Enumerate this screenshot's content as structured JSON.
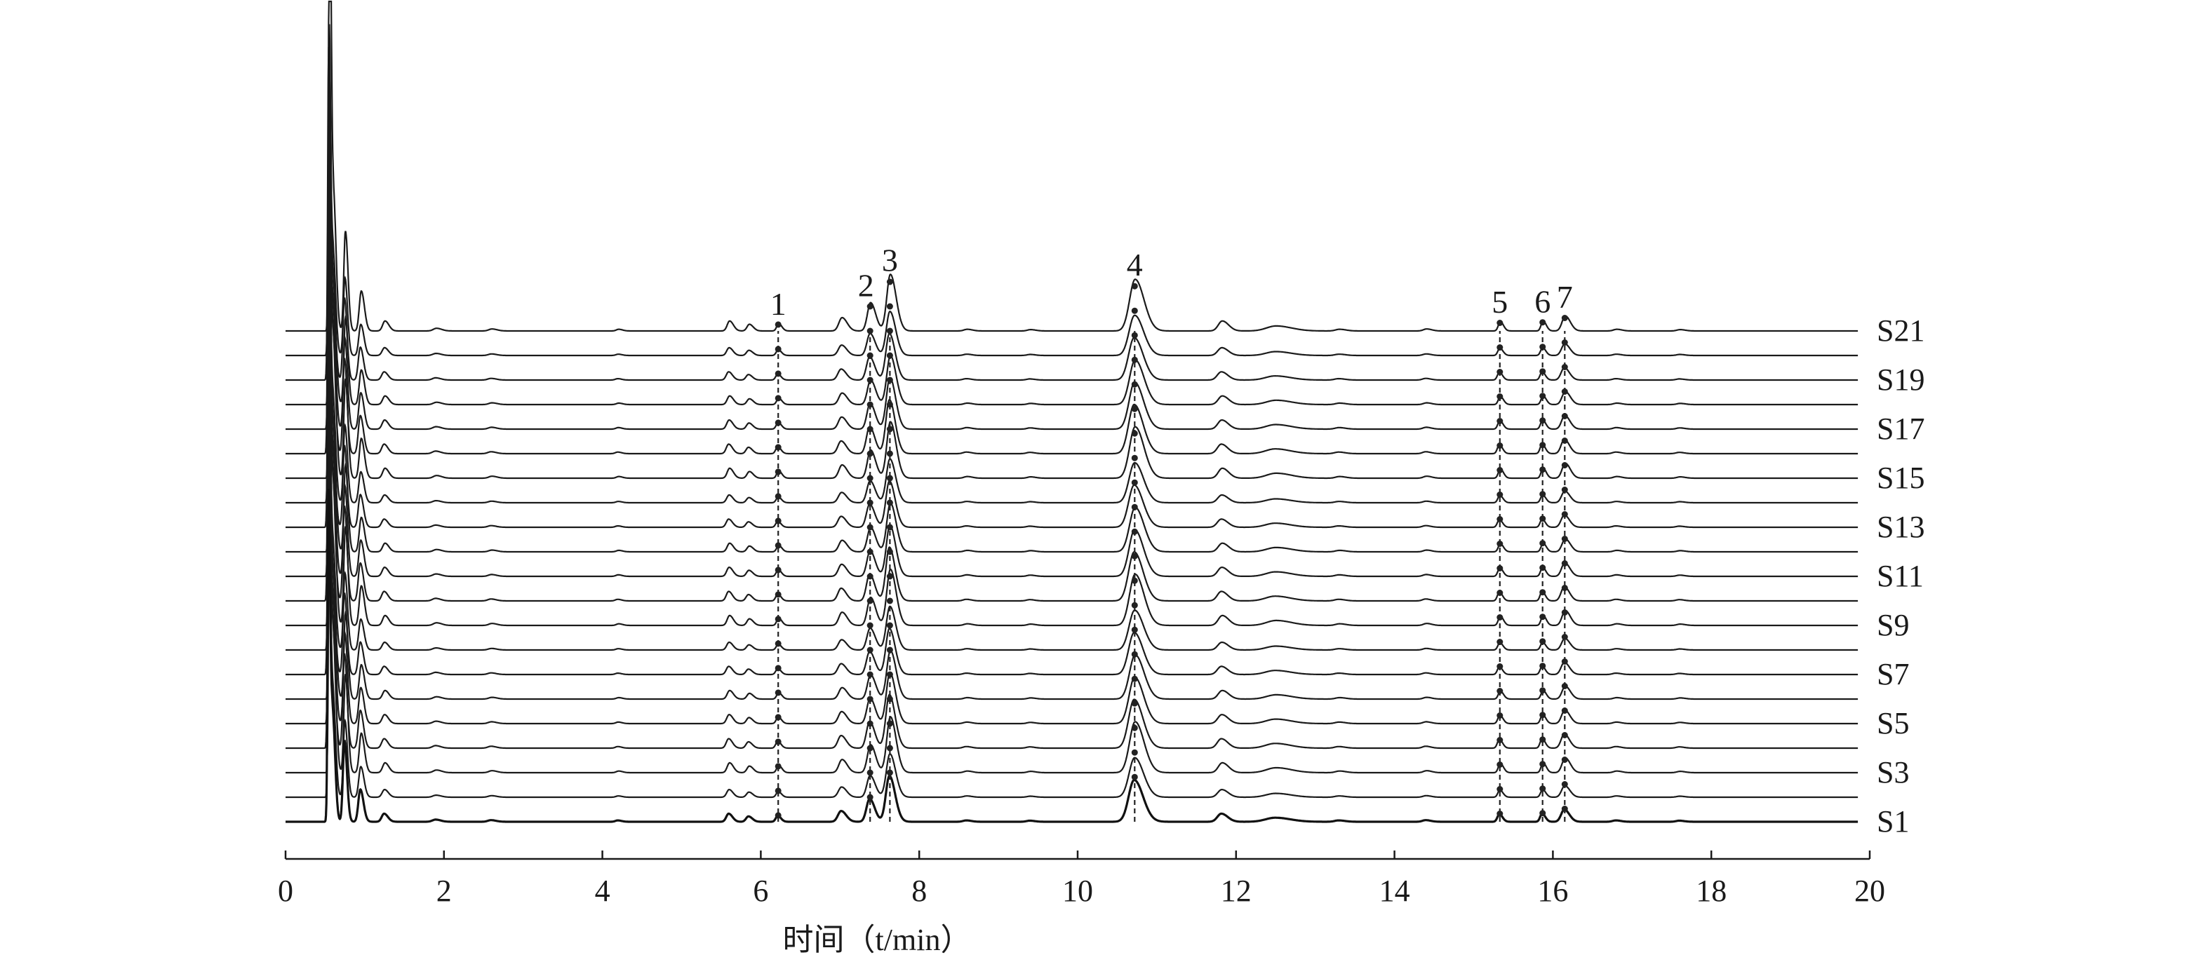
{
  "chart_data": {
    "type": "line",
    "title": "",
    "xlabel": "时间（t/min）",
    "ylabel": "",
    "xlim": [
      0,
      20
    ],
    "xticks": [
      0,
      2,
      4,
      6,
      8,
      10,
      12,
      14,
      16,
      18,
      20
    ],
    "grid": false,
    "legend": "none",
    "colors": {
      "trace": "#1a1a1a",
      "axis": "#1a1a1a",
      "marker": "#222222"
    },
    "series": [
      {
        "label": "S1"
      },
      {
        "label": ""
      },
      {
        "label": "S3"
      },
      {
        "label": ""
      },
      {
        "label": "S5"
      },
      {
        "label": ""
      },
      {
        "label": "S7"
      },
      {
        "label": ""
      },
      {
        "label": "S9"
      },
      {
        "label": ""
      },
      {
        "label": "S11"
      },
      {
        "label": ""
      },
      {
        "label": "S13"
      },
      {
        "label": ""
      },
      {
        "label": "S15"
      },
      {
        "label": ""
      },
      {
        "label": "S17"
      },
      {
        "label": ""
      },
      {
        "label": "S19"
      },
      {
        "label": ""
      },
      {
        "label": "S21"
      }
    ],
    "peaks": [
      {
        "label": "1",
        "rt": 6.22,
        "height": 0.22,
        "width": 0.025
      },
      {
        "label": "2",
        "rt": 7.38,
        "height": 0.85,
        "width": 0.04
      },
      {
        "label": "3",
        "rt": 7.63,
        "height": 1.7,
        "width": 0.045
      },
      {
        "label": "4",
        "rt": 10.72,
        "height": 1.55,
        "width": 0.07
      },
      {
        "label": "5",
        "rt": 15.33,
        "height": 0.28,
        "width": 0.025
      },
      {
        "label": "6",
        "rt": 15.87,
        "height": 0.3,
        "width": 0.025
      },
      {
        "label": "7",
        "rt": 16.15,
        "height": 0.45,
        "width": 0.04
      }
    ],
    "minor_peaks": [
      {
        "rt": 0.55,
        "height": 18.0,
        "width": 0.012
      },
      {
        "rt": 0.6,
        "height": 4.0,
        "width": 0.02
      },
      {
        "rt": 0.75,
        "height": 3.0,
        "width": 0.02
      },
      {
        "rt": 0.95,
        "height": 1.2,
        "width": 0.025
      },
      {
        "rt": 1.25,
        "height": 0.3,
        "width": 0.03
      },
      {
        "rt": 1.9,
        "height": 0.08,
        "width": 0.04
      },
      {
        "rt": 2.6,
        "height": 0.06,
        "width": 0.04
      },
      {
        "rt": 4.2,
        "height": 0.05,
        "width": 0.03
      },
      {
        "rt": 5.6,
        "height": 0.3,
        "width": 0.03
      },
      {
        "rt": 5.85,
        "height": 0.2,
        "width": 0.03
      },
      {
        "rt": 7.02,
        "height": 0.4,
        "width": 0.04
      },
      {
        "rt": 8.6,
        "height": 0.05,
        "width": 0.04
      },
      {
        "rt": 9.4,
        "height": 0.04,
        "width": 0.04
      },
      {
        "rt": 11.82,
        "height": 0.3,
        "width": 0.05
      },
      {
        "rt": 12.5,
        "height": 0.15,
        "width": 0.12
      },
      {
        "rt": 13.3,
        "height": 0.05,
        "width": 0.05
      },
      {
        "rt": 14.4,
        "height": 0.06,
        "width": 0.04
      },
      {
        "rt": 16.8,
        "height": 0.05,
        "width": 0.04
      },
      {
        "rt": 17.6,
        "height": 0.04,
        "width": 0.04
      }
    ]
  }
}
